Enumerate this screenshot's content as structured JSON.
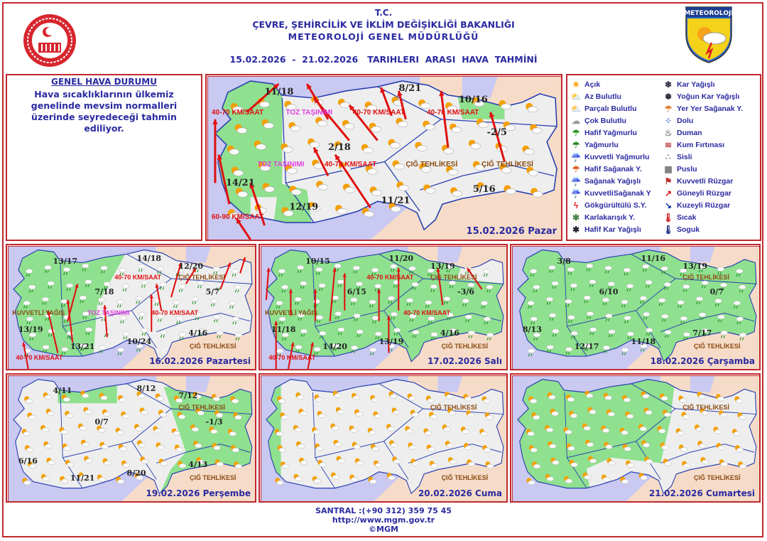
{
  "header": {
    "line1": "T.C.",
    "line2": "ÇEVRE, ŞEHİRCİLİK VE İKLİM DEĞİŞİKLİĞİ BAKANLIĞI",
    "line3": "METEOROLOJİ  GENEL  MÜDÜRLÜĞÜ",
    "period": "15.02.2026  -  21.02.2026   TARIHLERI  ARASI  HAVA  TAHMİNİ",
    "right_logo_text": "METEOROLOJİ"
  },
  "general": {
    "title": "GENEL HAVA DURUMU",
    "text": "Hava sıcaklıklarının ülkemiz genelinde mevsim normalleri üzerinde seyredeceği tahmin ediliyor."
  },
  "colors": {
    "accent_border": "#c0282d",
    "text_blue": "#2a2aa0",
    "sea": "#c9c9f2",
    "neighbor": "#f6dcc8",
    "land": "#eeeeee",
    "rain_area": "#8fe08f",
    "wind_arrow": "#e01010"
  },
  "maps": [
    {
      "date": "15.02.2026 Pazar",
      "temps": [
        "11/18",
        "8/21",
        "10/16",
        "-2/5",
        "2/18",
        "14/21",
        "12/19",
        "11/21",
        "5/16"
      ],
      "annotations": [
        "40-70 KM/SAAT",
        "TOZ TAŞINIMI",
        "40-70 KM/SAAT",
        "TOZ TAŞINIMI",
        "40-70 KM/SAAT",
        "40-70 KM/SAAT",
        "60-90 KM/SAAT",
        "ÇIĞ TEHLİKESİ",
        "ÇIĞ TEHLİKESİ"
      ]
    },
    {
      "date": "16.02.2026 Pazartesi",
      "temps": [
        "13/17",
        "14/18",
        "12/20",
        "7/18",
        "5/7",
        "13/19",
        "13/21",
        "10/24",
        "4/16"
      ],
      "annotations": [
        "TOZ TAŞINIMI",
        "KUVVETLİ YAĞIŞ",
        "40-70 KM/SAAT",
        "40-70 KM/SAAT",
        "40-70 KM/SAAT",
        "ÇIĞ TEHLİKESİ",
        "ÇIĞ TEHLİKESİ"
      ]
    },
    {
      "date": "17.02.2026 Salı",
      "temps": [
        "10/15",
        "11/20",
        "13/19",
        "6/15",
        "-3/6",
        "11/18",
        "14/20",
        "13/19",
        "4/16"
      ],
      "annotations": [
        "KUVVETLİ YAĞIŞ",
        "40-70 KM/SAAT",
        "40-70 KM/SAAT",
        "40-70 KM/SAAT",
        "ÇIĞ TEHLİKESİ",
        "ÇIĞ TEHLİKESİ"
      ]
    },
    {
      "date": "18.02.2026 Çarşamba",
      "temps": [
        "3/8",
        "11/16",
        "13/19",
        "6/10",
        "0/7",
        "8/13",
        "12/17",
        "11/18",
        "7/17"
      ],
      "annotations": [
        "ÇIĞ TEHLİKESİ",
        "ÇIĞ TEHLİKESİ"
      ]
    },
    {
      "date": "19.02.2026 Perşembe",
      "temps": [
        "4/11",
        "8/12",
        "7/12",
        "0/7",
        "-1/3",
        "6/16",
        "11/21",
        "8/20",
        "4/13"
      ],
      "annotations": [
        "ÇIĞ TEHLİKESİ",
        "ÇIĞ TEHLİKESİ"
      ]
    },
    {
      "date": "20.02.2026 Cuma",
      "temps": [],
      "annotations": [
        "ÇIĞ TEHLİKESİ",
        "ÇIĞ TEHLİKESİ"
      ]
    },
    {
      "date": "21.02.2026 Cumartesi",
      "temps": [],
      "annotations": [
        "ÇIĞ TEHLİKESİ",
        "ÇIĞ TEHLİKESİ"
      ]
    }
  ],
  "legend": {
    "col1": [
      {
        "label": "Açık",
        "icon": "sun-icon"
      },
      {
        "label": "Az Bulutlu",
        "icon": "sun-small-cloud-icon"
      },
      {
        "label": "Parçalı Bulutlu",
        "icon": "sun-cloud-icon"
      },
      {
        "label": "Çok Bulutlu",
        "icon": "cloud-icon"
      },
      {
        "label": "Hafif Yağmurlu",
        "icon": "light-rain-icon"
      },
      {
        "label": "Yağmurlu",
        "icon": "rain-icon"
      },
      {
        "label": "Kuvvetli Yağmurlu",
        "icon": "heavy-rain-icon"
      },
      {
        "label": "Hafif Sağanak Y.",
        "icon": "light-shower-icon"
      },
      {
        "label": "Sağanak Yağışlı",
        "icon": "shower-icon"
      },
      {
        "label": "KuvvetliSağanak Y",
        "icon": "heavy-shower-icon"
      },
      {
        "label": "Gökgürültülü S.Y.",
        "icon": "thunderstorm-icon"
      },
      {
        "label": "Karlakarışık Y.",
        "icon": "sleet-icon"
      },
      {
        "label": "Hafif Kar Yağışlı",
        "icon": "light-snow-icon"
      }
    ],
    "col2": [
      {
        "label": "Kar Yağışlı",
        "icon": "snow-icon"
      },
      {
        "label": "Yoğun Kar Yağışlı",
        "icon": "heavy-snow-icon"
      },
      {
        "label": "Yer Yer Sağanak Y.",
        "icon": "scattered-shower-icon"
      },
      {
        "label": "Dolu",
        "icon": "hail-icon"
      },
      {
        "label": "Duman",
        "icon": "smoke-icon"
      },
      {
        "label": "Kum Fırtınası",
        "icon": "sandstorm-icon"
      },
      {
        "label": "Sisli",
        "icon": "fog-icon"
      },
      {
        "label": "Puslu",
        "icon": "haze-icon"
      },
      {
        "label": "Kuvvetli Rüzgar",
        "icon": "strong-wind-icon"
      },
      {
        "label": "Güneyli Rüzgar",
        "icon": "south-wind-arrow-icon"
      },
      {
        "label": "Kuzeyli Rüzgar",
        "icon": "north-wind-arrow-icon"
      },
      {
        "label": "Sıcak",
        "icon": "hot-thermometer-icon"
      },
      {
        "label": "Soguk",
        "icon": "cold-thermometer-icon"
      }
    ]
  },
  "footer": {
    "phone": "SANTRAL :(+90 312) 359 75 45",
    "url": "http://www.mgm.gov.tr",
    "copyright": "©MGM"
  }
}
